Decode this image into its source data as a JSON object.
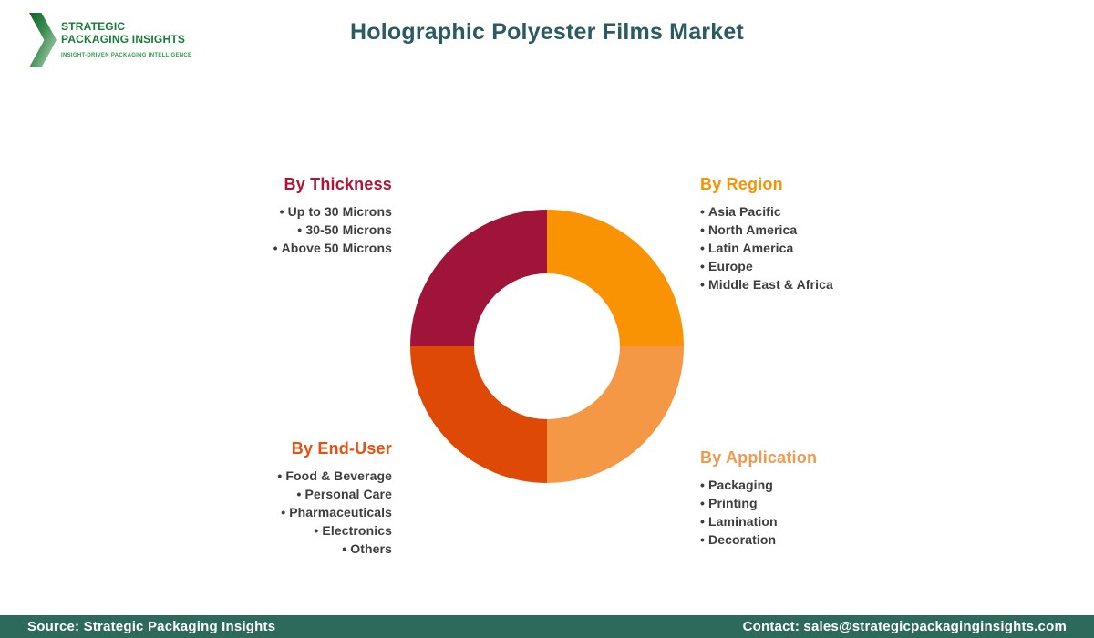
{
  "header": {
    "logo": {
      "name": "STRATEGIC\nPACKAGING INSIGHTS",
      "tagline": "INSIGHT-DRIVEN PACKAGING INTELLIGENCE",
      "name_color": "#187A34",
      "tagline_color": "#2F9A4D"
    },
    "title": "Holographic Polyester Films Market",
    "title_color": "#2A5A62"
  },
  "chart_data": {
    "type": "pie",
    "variant": "donut",
    "title": "Holographic Polyester Films Market",
    "inner_radius_ratio": 0.53,
    "start_angle_deg": 0,
    "legend_position": "around",
    "segments": [
      {
        "label": "By Region",
        "value": 25,
        "color": "#FA9303",
        "position": "top-right"
      },
      {
        "label": "By Application",
        "value": 25,
        "color": "#F49845",
        "position": "bottom-right"
      },
      {
        "label": "By End-User",
        "value": 25,
        "color": "#DE4906",
        "position": "bottom-left"
      },
      {
        "label": "By Thickness",
        "value": 25,
        "color": "#A1143A",
        "position": "top-left"
      }
    ]
  },
  "groups": {
    "thickness": {
      "heading": "By Thickness",
      "heading_color": "#B01335",
      "items": [
        "Up to 30 Microns",
        "30-50 Microns",
        "Above 50 Microns"
      ]
    },
    "region": {
      "heading": "By Region",
      "heading_color": "#FA9303",
      "items": [
        "Asia Pacific",
        "North America",
        "Latin America",
        "Europe",
        "Middle East & Africa"
      ]
    },
    "enduser": {
      "heading": "By End-User",
      "heading_color": "#E8500F",
      "items": [
        "Food & Beverage",
        "Personal Care",
        "Pharmaceuticals",
        "Electronics",
        "Others"
      ]
    },
    "application": {
      "heading": "By Application",
      "heading_color": "#F2994E",
      "items": [
        "Packaging",
        "Printing",
        "Lamination",
        "Decoration"
      ]
    }
  },
  "footer": {
    "source": "Source: Strategic Packaging Insights",
    "contact": "Contact: sales@strategicpackaginginsights.com",
    "bg_color": "#2D6A5B"
  }
}
